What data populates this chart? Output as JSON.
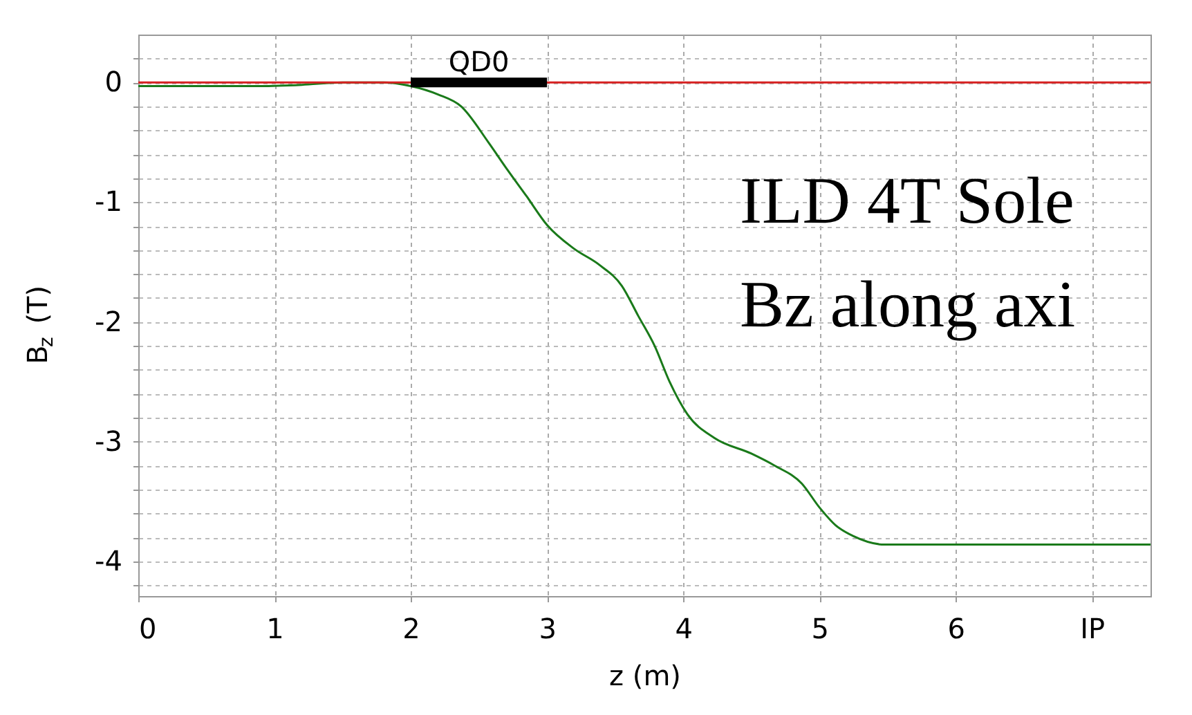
{
  "chart_data": {
    "type": "line",
    "xlabel": "z (m)",
    "ylabel": "B$_{z}$ (T)",
    "xlim": [
      0,
      7.43
    ],
    "ylim": [
      -4.29,
      0.4
    ],
    "xticks": [
      0,
      1,
      2,
      3,
      4,
      5,
      6,
      {
        "value": 7,
        "label": "IP"
      }
    ],
    "yticks": [
      {
        "value": 0.2,
        "label": null
      },
      0,
      {
        "value": -0.2,
        "label": null
      },
      {
        "value": -0.4,
        "label": null
      },
      {
        "value": -0.6,
        "label": null
      },
      {
        "value": -0.8,
        "label": null
      },
      -1,
      {
        "value": -1.2,
        "label": null
      },
      {
        "value": -1.4,
        "label": null
      },
      {
        "value": -1.6,
        "label": null
      },
      {
        "value": -1.8,
        "label": null
      },
      -2,
      {
        "value": -2.2,
        "label": null
      },
      {
        "value": -2.4,
        "label": null
      },
      {
        "value": -2.6,
        "label": null
      },
      {
        "value": -2.8,
        "label": null
      },
      -3,
      {
        "value": -3.2,
        "label": null
      },
      {
        "value": -3.4,
        "label": null
      },
      {
        "value": -3.6,
        "label": null
      },
      {
        "value": -3.8,
        "label": null
      },
      -4,
      {
        "value": -4.2,
        "label": null
      }
    ],
    "grid": true,
    "x": [
      0,
      0.3,
      0.6,
      0.9,
      1.2,
      1.5,
      1.8,
      2.0,
      2.2,
      2.37,
      2.57,
      2.71,
      2.85,
      3.0,
      3.2,
      3.38,
      3.55,
      3.67,
      3.79,
      3.9,
      4.03,
      4.23,
      4.5,
      4.67,
      4.87,
      5.0,
      5.12,
      5.25,
      5.48,
      6.0,
      6.5,
      7.0,
      7.43
    ],
    "series": [
      {
        "color": "#1a7a1a",
        "values": [
          -0.03,
          -0.03,
          -0.03,
          -0.03,
          -0.02,
          0.0,
          0.0,
          -0.03,
          -0.1,
          -0.2,
          -0.5,
          -0.73,
          -0.95,
          -1.19,
          -1.39,
          -1.52,
          -1.7,
          -1.95,
          -2.2,
          -2.5,
          -2.77,
          -2.97,
          -3.1,
          -3.2,
          -3.35,
          -3.55,
          -3.7,
          -3.79,
          -3.86,
          -3.86,
          -3.86,
          -3.86,
          -3.86
        ]
      },
      {
        "color": "#d62020",
        "x": [
          0,
          7.43
        ],
        "values": [
          0,
          0
        ]
      },
      {
        "color": "#000000",
        "x": [
          2,
          3
        ],
        "values": [
          0,
          0
        ]
      }
    ],
    "annotations": [
      {
        "text": "QD0",
        "x": 2.5,
        "y": 0
      },
      "ILD 4T Sole",
      "Bz along axi"
    ]
  }
}
